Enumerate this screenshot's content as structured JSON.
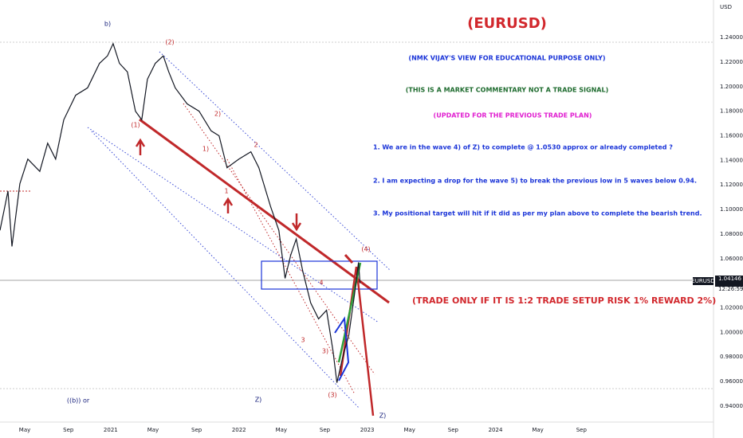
{
  "chart_data": {
    "type": "line",
    "title": "(EURUSD)",
    "currency": "USD",
    "symbol": "EURUSD",
    "last_price": "1.04146",
    "countdown": "12:26:59",
    "color": "#131722",
    "grid": false,
    "xlim": [
      2020.137,
      2025.7
    ],
    "ylim": [
      0.927,
      1.2705
    ],
    "xticks": [
      {
        "value": 2020.33,
        "label": "May"
      },
      {
        "value": 2020.67,
        "label": "Sep"
      },
      {
        "value": 2021,
        "label": "2021"
      },
      {
        "value": 2021.33,
        "label": "May"
      },
      {
        "value": 2021.67,
        "label": "Sep"
      },
      {
        "value": 2022,
        "label": "2022"
      },
      {
        "value": 2022.33,
        "label": "May"
      },
      {
        "value": 2022.67,
        "label": "Sep"
      },
      {
        "value": 2023,
        "label": "2023"
      },
      {
        "value": 2023.33,
        "label": "May"
      },
      {
        "value": 2023.67,
        "label": "Sep"
      },
      {
        "value": 2024,
        "label": "2024"
      },
      {
        "value": 2024.33,
        "label": "May"
      },
      {
        "value": 2024.67,
        "label": "Sep"
      }
    ],
    "yticks": [
      {
        "value": 0.94,
        "label": "0.94000"
      },
      {
        "value": 0.96,
        "label": "0.96000"
      },
      {
        "value": 0.98,
        "label": "0.98000"
      },
      {
        "value": 1.0,
        "label": "1.00000"
      },
      {
        "value": 1.02,
        "label": "1.02000"
      },
      {
        "value": 1.06,
        "label": "1.06000"
      },
      {
        "value": 1.08,
        "label": "1.08000"
      },
      {
        "value": 1.1,
        "label": "1.10000"
      },
      {
        "value": 1.12,
        "label": "1.12000"
      },
      {
        "value": 1.14,
        "label": "1.14000"
      },
      {
        "value": 1.16,
        "label": "1.16000"
      },
      {
        "value": 1.18,
        "label": "1.18000"
      },
      {
        "value": 1.2,
        "label": "1.20000"
      },
      {
        "value": 1.22,
        "label": "1.22000"
      },
      {
        "value": 1.24,
        "label": "1.24000"
      }
    ],
    "series": [
      {
        "name": "EURUSD",
        "color": "#131722",
        "x": [
          2020.137,
          2020.199,
          2020.23,
          2020.292,
          2020.354,
          2020.447,
          2020.509,
          2020.571,
          2020.634,
          2020.727,
          2020.82,
          2020.913,
          2020.975,
          2021.019,
          2021.068,
          2021.13,
          2021.193,
          2021.242,
          2021.286,
          2021.348,
          2021.41,
          2021.453,
          2021.503,
          2021.596,
          2021.689,
          2021.783,
          2021.845,
          2021.907,
          2022.0,
          2022.093,
          2022.155,
          2022.248,
          2022.311,
          2022.36,
          2022.404,
          2022.447,
          2022.497,
          2022.559,
          2022.621,
          2022.683,
          2022.733,
          2022.764,
          2022.807,
          2022.857,
          2022.901,
          2022.932,
          2022.944
        ],
        "values": [
          1.083,
          1.115,
          1.07,
          1.121,
          1.141,
          1.131,
          1.154,
          1.141,
          1.173,
          1.193,
          1.199,
          1.219,
          1.225,
          1.235,
          1.219,
          1.212,
          1.18,
          1.173,
          1.206,
          1.219,
          1.225,
          1.212,
          1.199,
          1.186,
          1.18,
          1.164,
          1.16,
          1.134,
          1.141,
          1.147,
          1.134,
          1.102,
          1.083,
          1.044,
          1.063,
          1.076,
          1.05,
          1.024,
          1.011,
          1.018,
          0.985,
          0.959,
          0.979,
          0.998,
          1.031,
          1.057,
          1.04
        ]
      }
    ],
    "waves": [
      "b)",
      "(2)",
      "(1)",
      "2)",
      "1)",
      "2",
      "1",
      "4",
      "3",
      "3)",
      "(3)",
      "(4)",
      "((b)) or",
      "Z)",
      "Z)"
    ],
    "commentary": [
      "(NMK VIJAY'S VIEW FOR EDUCATIONAL PURPOSE ONLY)",
      "(THIS IS A MARKET COMMENTARY NOT A TRADE SIGNAL)",
      "(UPDATED FOR THE PREVIOUS TRADE PLAN)",
      "1. We are in the wave 4) of Z) to complete @ 1.0530 approx or already completed ?",
      "2. I am expecting a drop for the wave 5) to break the previous low in 5 waves below 0.94.",
      "3. My positional target will hit if it did as per my plan above to complete the bearish trend.",
      "(TRADE ONLY IF IT IS 1:2 TRADE SETUP RISK 1% REWARD 2%)"
    ]
  }
}
